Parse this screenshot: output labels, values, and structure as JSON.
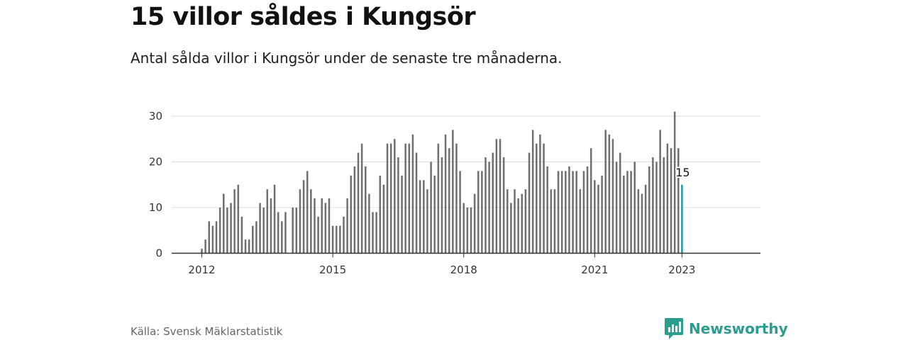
{
  "title": "15 villor såldes i Kungsör",
  "subtitle": "Antal sålda villor i Kungsör under de senaste tre månaderna.",
  "source": "Källa: Svensk Mäklarstatistik",
  "brand": {
    "name": "Newsworthy",
    "icon": "newsworthy-logo-icon",
    "color": "#2a9d8f"
  },
  "chart_data": {
    "type": "bar",
    "title": "15 villor såldes i Kungsör",
    "subtitle": "Antal sålda villor i Kungsör under de senaste tre månaderna.",
    "xlabel": "",
    "ylabel": "",
    "ylim": [
      0,
      30
    ],
    "yticks": [
      0,
      10,
      20,
      30
    ],
    "xticks": [
      "2012",
      "2015",
      "2018",
      "2021",
      "2023"
    ],
    "grid": true,
    "legend": "none",
    "bar_color": "#6e6e73",
    "highlight_color": "#1a9e96",
    "highlight_label": "15",
    "start": "2012-01",
    "frequency": "monthly",
    "categories": [
      "2012-01",
      "2012-02",
      "2012-03",
      "2012-04",
      "2012-05",
      "2012-06",
      "2012-07",
      "2012-08",
      "2012-09",
      "2012-10",
      "2012-11",
      "2012-12",
      "2013-01",
      "2013-02",
      "2013-03",
      "2013-04",
      "2013-05",
      "2013-06",
      "2013-07",
      "2013-08",
      "2013-09",
      "2013-10",
      "2013-11",
      "2013-12",
      "2014-01",
      "2014-02",
      "2014-03",
      "2014-04",
      "2014-05",
      "2014-06",
      "2014-07",
      "2014-08",
      "2014-09",
      "2014-10",
      "2014-11",
      "2014-12",
      "2015-01",
      "2015-02",
      "2015-03",
      "2015-04",
      "2015-05",
      "2015-06",
      "2015-07",
      "2015-08",
      "2015-09",
      "2015-10",
      "2015-11",
      "2015-12",
      "2016-01",
      "2016-02",
      "2016-03",
      "2016-04",
      "2016-05",
      "2016-06",
      "2016-07",
      "2016-08",
      "2016-09",
      "2016-10",
      "2016-11",
      "2016-12",
      "2017-01",
      "2017-02",
      "2017-03",
      "2017-04",
      "2017-05",
      "2017-06",
      "2017-07",
      "2017-08",
      "2017-09",
      "2017-10",
      "2017-11",
      "2017-12",
      "2018-01",
      "2018-02",
      "2018-03",
      "2018-04",
      "2018-05",
      "2018-06",
      "2018-07",
      "2018-08",
      "2018-09",
      "2018-10",
      "2018-11",
      "2018-12",
      "2019-01",
      "2019-02",
      "2019-03",
      "2019-04",
      "2019-05",
      "2019-06",
      "2019-07",
      "2019-08",
      "2019-09",
      "2019-10",
      "2019-11",
      "2019-12",
      "2020-01",
      "2020-02",
      "2020-03",
      "2020-04",
      "2020-05",
      "2020-06",
      "2020-07",
      "2020-08",
      "2020-09",
      "2020-10",
      "2020-11",
      "2020-12",
      "2021-01",
      "2021-02",
      "2021-03",
      "2021-04",
      "2021-05",
      "2021-06",
      "2021-07",
      "2021-08",
      "2021-09",
      "2021-10",
      "2021-11",
      "2021-12",
      "2022-01",
      "2022-02",
      "2022-03",
      "2022-04",
      "2022-05",
      "2022-06",
      "2022-07",
      "2022-08",
      "2022-09",
      "2022-10",
      "2022-11",
      "2022-12",
      "2023-01"
    ],
    "values": [
      1,
      3,
      7,
      6,
      7,
      10,
      13,
      10,
      11,
      14,
      15,
      8,
      3,
      3,
      6,
      7,
      11,
      10,
      14,
      12,
      15,
      9,
      7,
      9,
      null,
      10,
      10,
      14,
      16,
      18,
      14,
      12,
      8,
      12,
      11,
      12,
      6,
      6,
      6,
      8,
      12,
      17,
      19,
      22,
      24,
      19,
      13,
      9,
      9,
      17,
      15,
      24,
      24,
      25,
      21,
      17,
      24,
      24,
      26,
      22,
      16,
      16,
      14,
      20,
      17,
      24,
      21,
      26,
      23,
      27,
      24,
      18,
      11,
      10,
      10,
      13,
      18,
      18,
      21,
      20,
      22,
      25,
      25,
      21,
      14,
      11,
      14,
      12,
      13,
      14,
      22,
      27,
      24,
      26,
      24,
      19,
      14,
      14,
      18,
      18,
      18,
      19,
      18,
      18,
      14,
      18,
      19,
      23,
      16,
      15,
      17,
      27,
      26,
      25,
      20,
      22,
      17,
      18,
      18,
      20,
      14,
      13,
      15,
      19,
      21,
      20,
      27,
      21,
      24,
      23,
      31,
      23,
      15
    ]
  }
}
